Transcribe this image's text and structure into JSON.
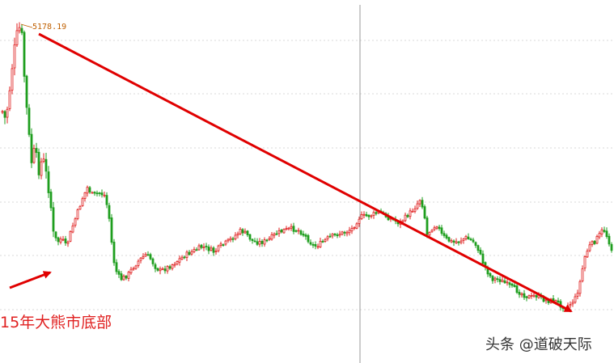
{
  "chart_data": {
    "type": "candlestick",
    "title": "",
    "xlabel": "",
    "ylabel": "",
    "grid": "horizontal dotted",
    "peak_label": "5178.19",
    "bottom_annotation": "15年大熊市底部",
    "watermark": "头条 @道破天际",
    "colors": {
      "up": "#e02020",
      "down": "#1e9e1e",
      "trend_arrow": "#e00000",
      "peak_label": "#c06000",
      "grid": "#d8d8d8",
      "divider": "#999999"
    }
  }
}
